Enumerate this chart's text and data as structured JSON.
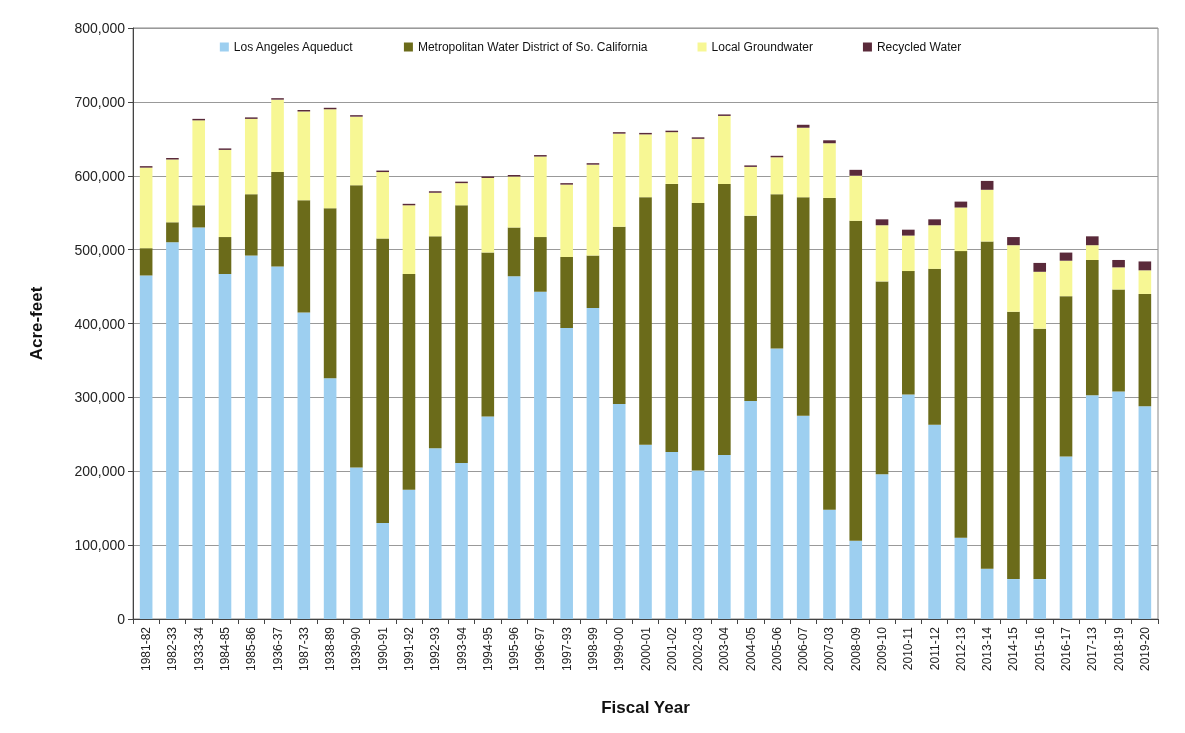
{
  "chart_data": {
    "type": "bar",
    "stacked": true,
    "xlabel": "Fiscal Year",
    "ylabel": "Acre-feet",
    "categories": [
      "1981-82",
      "1982-33",
      "1933-34",
      "1984-85",
      "1985-86",
      "1936-37",
      "1987-33",
      "1938-89",
      "1939-90",
      "1990-91",
      "1991-92",
      "1992-93",
      "1993-94",
      "1994-95",
      "1995-96",
      "1996-97",
      "1997-93",
      "1998-99",
      "1999-00",
      "2000-01",
      "2001-02",
      "2002-03",
      "2003-04",
      "2004-05",
      "2005-06",
      "2006-07",
      "2007-03",
      "2008-09",
      "2009-10",
      "2010-11",
      "2011-12",
      "2012-13",
      "2013-14",
      "2014-15",
      "2015-16",
      "2016-17",
      "2017-13",
      "2018-19",
      "2019-20"
    ],
    "series": [
      {
        "name": "Los Angeles Aqueduct",
        "color": "#9dcff0",
        "values": [
          465000,
          510000,
          530000,
          467000,
          492000,
          477000,
          415000,
          326000,
          205000,
          130000,
          175000,
          231000,
          211000,
          274000,
          464000,
          443000,
          394000,
          421000,
          291000,
          236000,
          226000,
          201000,
          222000,
          295000,
          366000,
          275000,
          148000,
          106000,
          196000,
          304000,
          263000,
          110000,
          68000,
          54000,
          54000,
          220000,
          303000,
          308000,
          288000
        ]
      },
      {
        "name": "Metropolitan Water District of So. California",
        "color": "#6b6b1a",
        "values": [
          37000,
          27000,
          30000,
          50000,
          83000,
          128000,
          152000,
          230000,
          382000,
          385000,
          292000,
          287000,
          349000,
          222000,
          66000,
          74000,
          96000,
          71000,
          240000,
          335000,
          363000,
          362000,
          367000,
          251000,
          209000,
          296000,
          422000,
          433000,
          261000,
          167000,
          211000,
          388000,
          443000,
          362000,
          339000,
          217000,
          183000,
          138000,
          152000
        ]
      },
      {
        "name": "Local Groundwater",
        "color": "#f7f794",
        "values": [
          109000,
          85000,
          115000,
          118000,
          102000,
          98000,
          120000,
          134000,
          93000,
          90000,
          93000,
          59000,
          30000,
          101000,
          69000,
          109000,
          98000,
          123000,
          126000,
          85000,
          70000,
          87000,
          92000,
          66000,
          50000,
          94000,
          74000,
          61000,
          76000,
          48000,
          59000,
          59000,
          70000,
          90000,
          77000,
          48000,
          20000,
          30000,
          32000
        ]
      },
      {
        "name": "Recycled Water",
        "color": "#5a2a3a",
        "values": [
          2000,
          2000,
          2000,
          2000,
          2000,
          2000,
          2000,
          2000,
          2000,
          2000,
          2000,
          2000,
          2000,
          2000,
          2000,
          2000,
          2000,
          2000,
          2000,
          2000,
          2000,
          2000,
          2000,
          2000,
          2000,
          4000,
          4000,
          8000,
          8000,
          8000,
          8000,
          8000,
          12000,
          11000,
          12000,
          11000,
          12000,
          10000,
          12000
        ]
      }
    ],
    "ylim": [
      0,
      800000
    ],
    "yticks": [
      0,
      {
        "value": 100000,
        "label": "100,000"
      },
      {
        "value": 200000,
        "label": "200,000"
      },
      {
        "value": 300000,
        "label": "300,000"
      },
      {
        "value": 400000,
        "label": "400,000"
      },
      {
        "value": 500000,
        "label": "500,000"
      },
      {
        "value": 600000,
        "label": "600,000"
      },
      {
        "value": 700000,
        "label": "700,000"
      },
      {
        "value": 800000,
        "label": "800,000"
      }
    ],
    "grid": "y",
    "legend": "top"
  }
}
